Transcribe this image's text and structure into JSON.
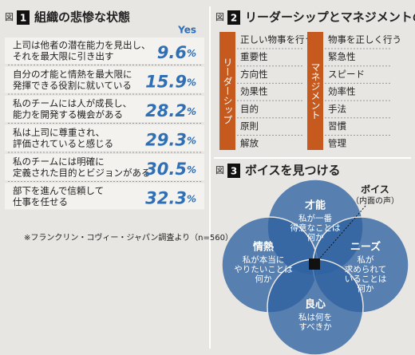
{
  "figure1": {
    "label": "図",
    "number": "1",
    "title": "組織の悲惨な状態",
    "column_header": "Yes",
    "rows": [
      {
        "text": [
          "上司は他者の潜在能力を見出し、",
          "それを最大限に引き出す"
        ],
        "value": "9.6%"
      },
      {
        "text": [
          "自分の才能と情熱を最大限に",
          "発揮できる役割に就いている"
        ],
        "value": "15.9%"
      },
      {
        "text": [
          "私のチームには人が成長し、",
          "能力を開発する機会がある"
        ],
        "value": "28.2%"
      },
      {
        "text": [
          "私は上司に尊重され、",
          "評価されていると感じる"
        ],
        "value": "29.3%"
      },
      {
        "text": [
          "私のチームには明確に",
          "定義された目的とビジョンがある"
        ],
        "value": "30.5%"
      },
      {
        "text": [
          "部下を進んで信頼して",
          "仕事を任せる"
        ],
        "value": "32.3%"
      }
    ],
    "note": "※フランクリン・コヴィー・ジャパン調査より（n=560）"
  },
  "figure2": {
    "label": "図",
    "number": "2",
    "title": "リーダーシップとマネジメントの違い",
    "columns": [
      {
        "header": "リーダーシップ",
        "items": [
          "正しい物事を行う",
          "重要性",
          "方向性",
          "効果性",
          "目的",
          "原則",
          "解放"
        ]
      },
      {
        "header": "マネジメント",
        "items": [
          "物事を正しく行う",
          "緊急性",
          "スピード",
          "効率性",
          "手法",
          "習慣",
          "管理"
        ]
      }
    ]
  },
  "figure3": {
    "label": "図",
    "number": "3",
    "title": "ボイスを見つける",
    "circles": [
      {
        "title": "才能",
        "text": [
          "私が一番",
          "得意なことは",
          "何か"
        ]
      },
      {
        "title": "情熱",
        "text": [
          "私が本当に",
          "やりたいことは",
          "何か"
        ]
      },
      {
        "title": "ニーズ",
        "text": [
          "私が",
          "求められて",
          "いることは",
          "何か"
        ]
      },
      {
        "title": "良心",
        "text": [
          "私は何を",
          "すべきか"
        ]
      }
    ],
    "callout": [
      "ボイス",
      "（内面の声）"
    ]
  }
}
